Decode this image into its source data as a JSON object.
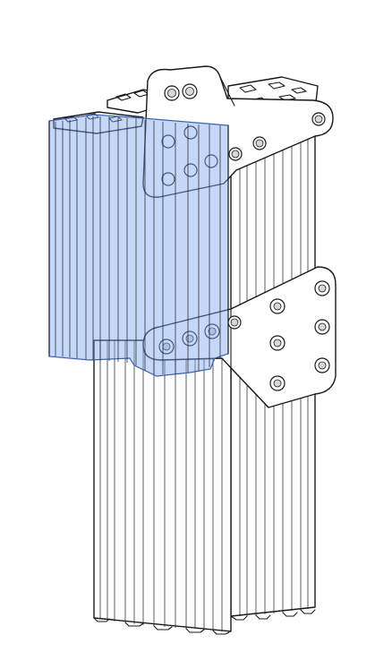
{
  "figure": {
    "subject": "",
    "highlight_color": "#7fa8f0",
    "highlight_edge": "#3f63b0",
    "line_color": "#1a1a1a",
    "background": "#ffffff"
  }
}
